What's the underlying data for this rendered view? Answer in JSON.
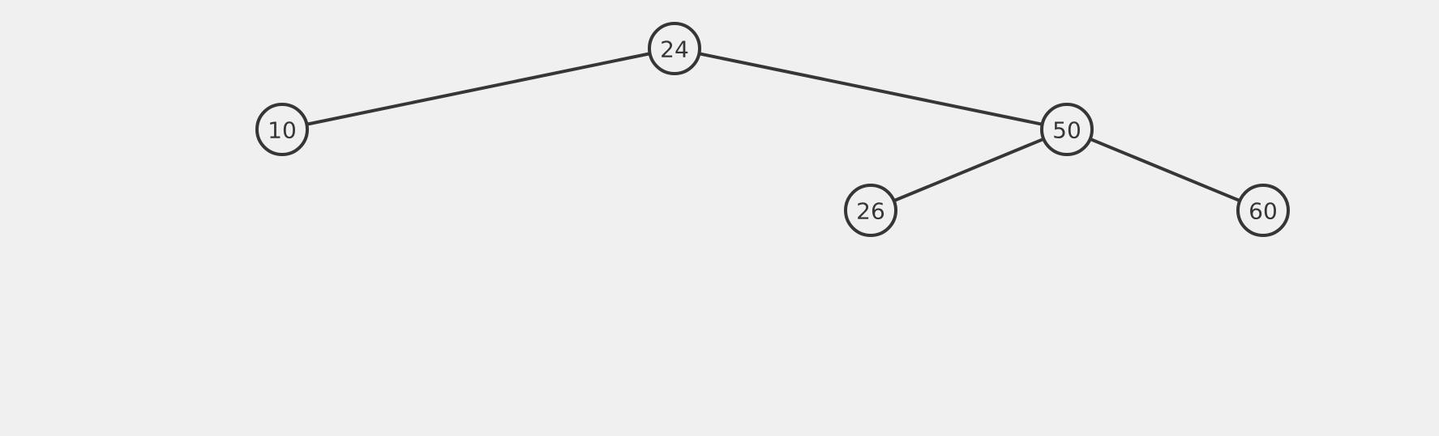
{
  "tree": {
    "root": "24",
    "nodes": [
      {
        "id": "24",
        "label": "24"
      },
      {
        "id": "10",
        "label": "10"
      },
      {
        "id": "50",
        "label": "50"
      },
      {
        "id": "26",
        "label": "26"
      },
      {
        "id": "60",
        "label": "60"
      }
    ],
    "edges": [
      {
        "from": "24",
        "to": "10",
        "side": "left"
      },
      {
        "from": "24",
        "to": "50",
        "side": "right"
      },
      {
        "from": "50",
        "to": "26",
        "side": "left"
      },
      {
        "from": "50",
        "to": "60",
        "side": "right"
      }
    ]
  },
  "colors": {
    "background": "#f0f0f0",
    "stroke": "#363636",
    "text": "#363636"
  }
}
